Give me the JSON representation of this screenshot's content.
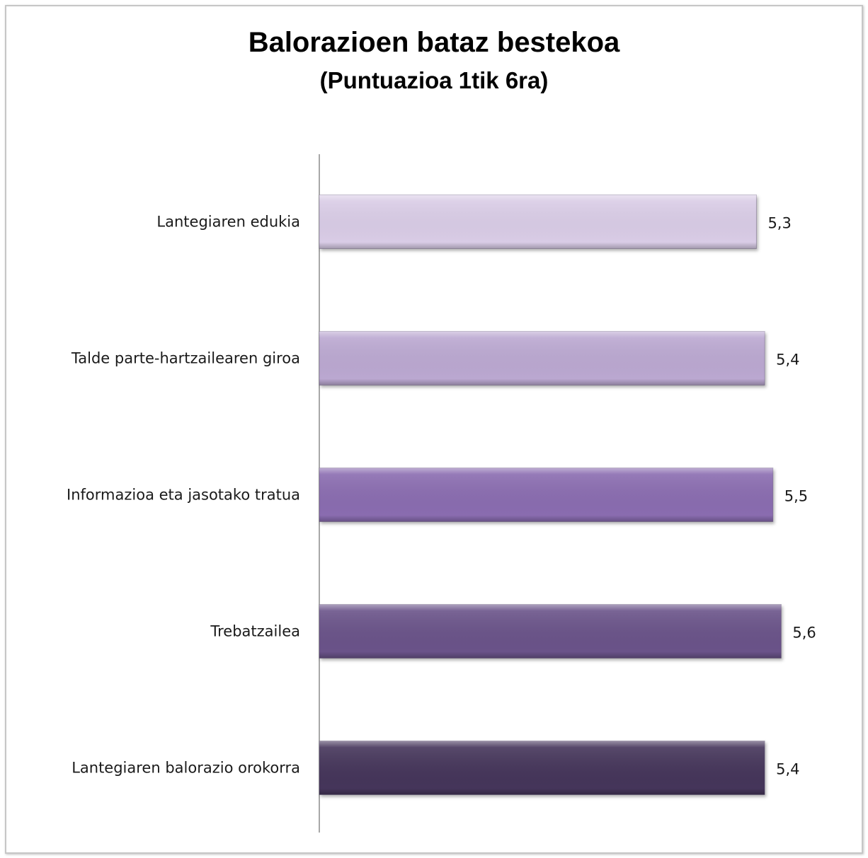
{
  "chart_data": {
    "type": "bar",
    "orientation": "horizontal",
    "title": "Balorazioen bataz bestekoa",
    "subtitle": "(Puntuazioa 1tik 6ra)",
    "categories": [
      "Lantegiaren edukia",
      "Talde parte-hartzailearen giroa",
      "Informazioa eta jasotako tratua",
      "Trebatzailea",
      "Lantegiaren balorazio orokorra"
    ],
    "values": [
      5.3,
      5.4,
      5.5,
      5.6,
      5.4
    ],
    "value_labels": [
      "5,3",
      "5,4",
      "5,5",
      "5,6",
      "5,4"
    ],
    "colors": [
      "#d9cce6",
      "#bba8d1",
      "#8a6cb0",
      "#6a5289",
      "#45365a"
    ],
    "xlim": [
      0,
      6
    ],
    "grid": false,
    "legend": "none"
  }
}
